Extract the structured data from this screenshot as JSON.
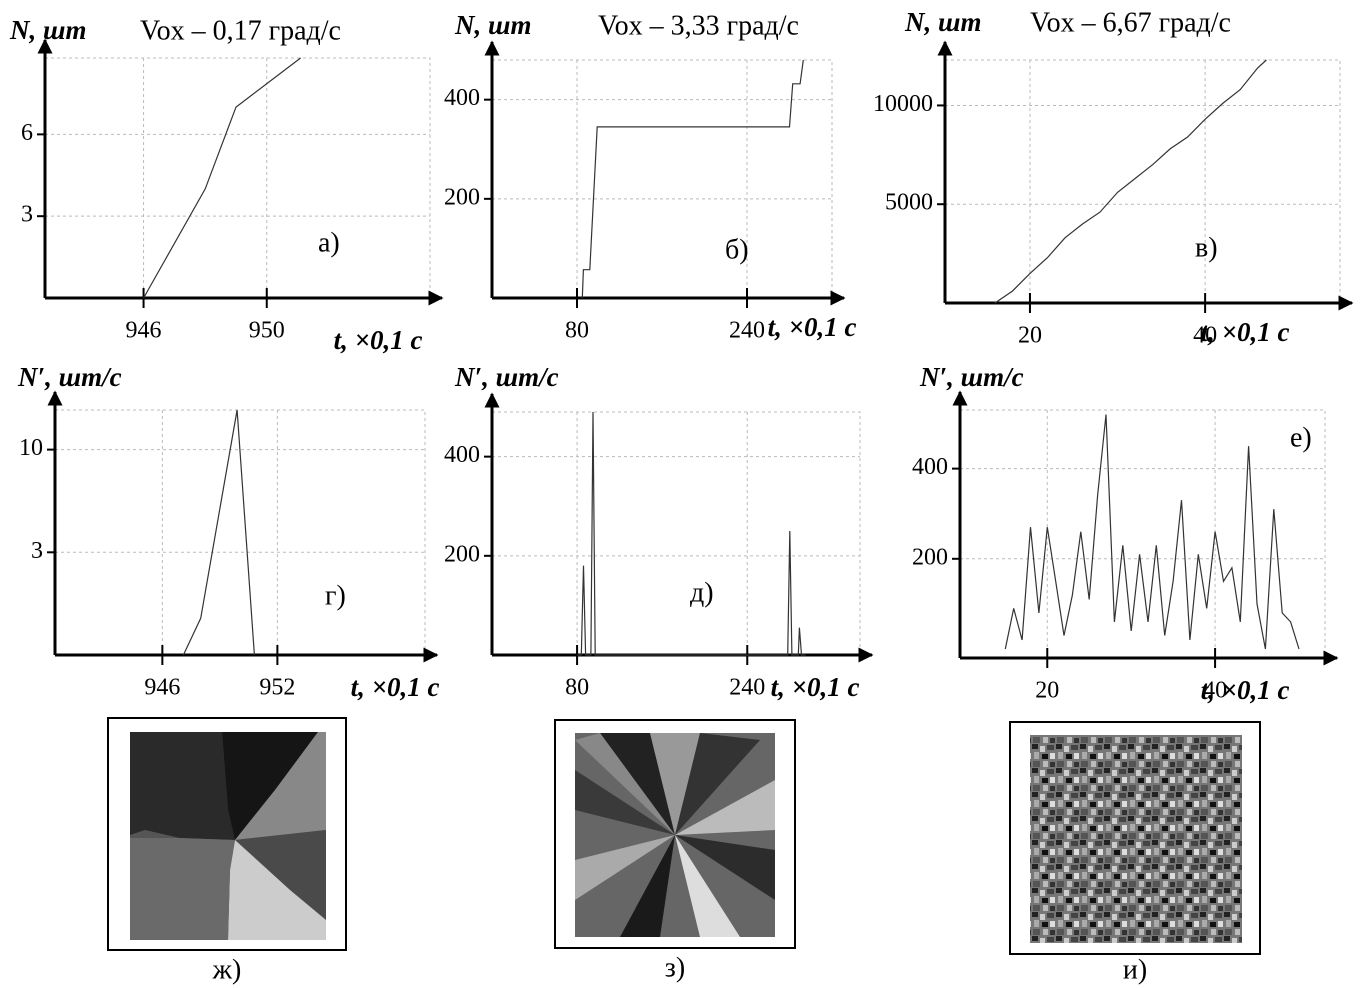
{
  "chart_data": [
    {
      "type": "line",
      "title": "Vox – 0,17 град/с",
      "y_label": "N, шт",
      "x_label": "t, ×0,1 c",
      "annotation": "а)",
      "x": [
        946,
        948,
        949,
        951.1
      ],
      "series": [
        {
          "color": "#333333",
          "values": [
            0,
            4,
            7,
            8.8
          ]
        }
      ],
      "xlim": [
        942.8,
        955.3
      ],
      "xticks": [
        946,
        950
      ],
      "ylim": [
        0,
        8.8
      ],
      "yticks": [
        3,
        6
      ],
      "grid": true
    },
    {
      "type": "line",
      "title": "Vox – 3,33 град/с",
      "y_label": "N, шт",
      "x_label": "t, ×0,1 c",
      "annotation": "б)",
      "x": [
        85,
        86,
        92,
        99,
        280,
        283,
        290,
        293
      ],
      "series": [
        {
          "color": "#333333",
          "values": [
            0,
            57,
            57,
            345,
            345,
            432,
            432,
            480
          ]
        }
      ],
      "xlim": [
        0,
        320
      ],
      "xticks": [
        80,
        240
      ],
      "ylim": [
        0,
        480
      ],
      "yticks": [
        200,
        400
      ],
      "grid": true
    },
    {
      "type": "line",
      "title": "Vox – 6,67 град/с",
      "y_label": "N, шт",
      "x_label": "t, ×0,1 c",
      "annotation": "в)",
      "x": [
        16,
        18,
        20,
        22,
        24,
        26,
        28,
        30,
        32,
        34,
        36,
        38,
        40,
        42,
        44,
        46,
        47
      ],
      "series": [
        {
          "color": "#333333",
          "values": [
            0,
            600,
            1500,
            2300,
            3300,
            4000,
            4600,
            5600,
            6300,
            7000,
            7800,
            8400,
            9300,
            10100,
            10800,
            11900,
            12300
          ]
        }
      ],
      "xlim": [
        10.3,
        55.4
      ],
      "xticks": [
        20,
        40
      ],
      "ylim": [
        0,
        12300
      ],
      "yticks": [
        5000,
        10000
      ],
      "grid": true
    },
    {
      "type": "line",
      "y_label": "N′, шт/с",
      "x_label": "t, ×0,1 c",
      "annotation": "г)",
      "x": [
        947.1,
        948,
        949.9,
        950.8
      ],
      "series": [
        {
          "color": "#333333",
          "values": [
            -4,
            -1.5,
            12.7,
            -4
          ]
        }
      ],
      "xlim": [
        940.4,
        959.7
      ],
      "xticks": [
        946,
        952
      ],
      "ylim": [
        -4,
        12.7
      ],
      "yticks": [
        3,
        10
      ],
      "grid": true
    },
    {
      "type": "line",
      "y_label": "N′, шт/с",
      "x_label": "t, ×0,1 c",
      "annotation": "д)",
      "x": [
        80,
        84,
        86,
        88,
        90,
        93,
        95,
        97,
        100,
        275,
        278,
        280,
        282,
        285,
        288,
        289,
        291,
        295
      ],
      "series": [
        {
          "color": "#333333",
          "values": [
            0,
            0,
            180,
            0,
            0,
            0,
            490,
            0,
            0,
            0,
            0,
            250,
            0,
            0,
            0,
            55,
            0,
            0
          ]
        }
      ],
      "xlim": [
        0,
        346
      ],
      "xticks": [
        80,
        240
      ],
      "ylim": [
        0,
        490
      ],
      "yticks": [
        200,
        400
      ],
      "grid": true
    },
    {
      "type": "line",
      "y_label": "N′, шт/с",
      "x_label": "t, ×0,1 c",
      "annotation": "е)",
      "x": [
        15,
        16,
        17,
        18,
        19,
        20,
        21,
        22,
        23,
        24,
        25,
        26,
        27,
        28,
        29,
        30,
        31,
        32,
        33,
        34,
        35,
        36,
        37,
        38,
        39,
        40,
        41,
        42,
        43,
        44,
        45,
        46,
        47,
        48,
        49,
        50
      ],
      "series": [
        {
          "color": "#333333",
          "values": [
            0,
            90,
            20,
            270,
            80,
            270,
            150,
            30,
            120,
            260,
            110,
            340,
            520,
            60,
            230,
            40,
            210,
            60,
            230,
            30,
            150,
            330,
            20,
            210,
            90,
            260,
            150,
            180,
            60,
            450,
            100,
            0,
            310,
            80,
            60,
            0
          ]
        }
      ],
      "xlim": [
        9.6,
        53.1
      ],
      "xticks": [
        20,
        40
      ],
      "ylim": [
        -20,
        530
      ],
      "yticks": [
        200,
        400
      ],
      "grid": true
    }
  ],
  "images": [
    {
      "label": "ж)"
    },
    {
      "label": "з)"
    },
    {
      "label": "и)"
    }
  ]
}
